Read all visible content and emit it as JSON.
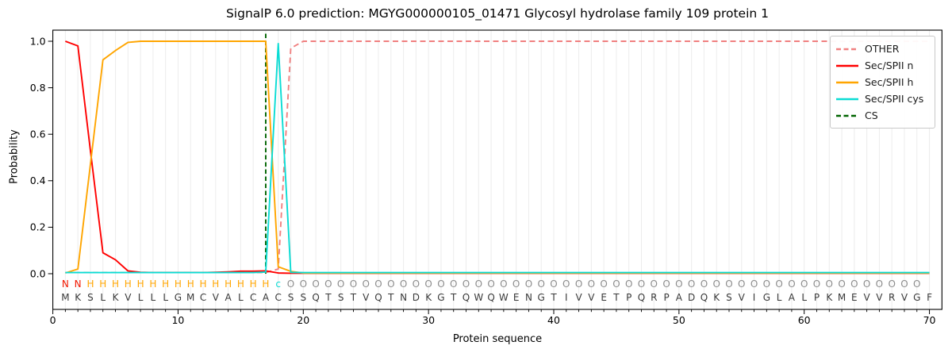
{
  "chart_data": {
    "type": "line",
    "title": "SignalP 6.0 prediction: MGYG000000105_01471 Glycosyl hydrolase family 109 protein 1",
    "xlabel": "Protein sequence",
    "ylabel": "Probability",
    "xlim": [
      0,
      71
    ],
    "ylim": [
      -0.15,
      1.05
    ],
    "xticks": [
      0,
      10,
      20,
      30,
      40,
      50,
      60,
      70
    ],
    "yticks": [
      "0.0",
      "0.2",
      "0.4",
      "0.6",
      "0.8",
      "1.0"
    ],
    "grid": "vertical line at every residue position, light gray",
    "legend_position": "upper right",
    "x": [
      1,
      2,
      3,
      4,
      5,
      6,
      7,
      8,
      9,
      10,
      11,
      12,
      13,
      14,
      15,
      16,
      17,
      18,
      19,
      20,
      21,
      22,
      23,
      24,
      25,
      26,
      27,
      28,
      29,
      30,
      31,
      32,
      33,
      34,
      35,
      36,
      37,
      38,
      39,
      40,
      41,
      42,
      43,
      44,
      45,
      46,
      47,
      48,
      49,
      50,
      51,
      52,
      53,
      54,
      55,
      56,
      57,
      58,
      59,
      60,
      61,
      62,
      63,
      64,
      65,
      66,
      67,
      68,
      69,
      70
    ],
    "series": [
      {
        "name": "OTHER",
        "color": "#f08080",
        "dash": true,
        "values": [
          0.005,
          0.005,
          0.005,
          0.005,
          0.005,
          0.005,
          0.005,
          0.005,
          0.005,
          0.005,
          0.005,
          0.005,
          0.005,
          0.005,
          0.005,
          0.005,
          0.005,
          0.02,
          0.97,
          1,
          1,
          1,
          1,
          1,
          1,
          1,
          1,
          1,
          1,
          1,
          1,
          1,
          1,
          1,
          1,
          1,
          1,
          1,
          1,
          1,
          1,
          1,
          1,
          1,
          1,
          1,
          1,
          1,
          1,
          1,
          1,
          1,
          1,
          1,
          1,
          1,
          1,
          1,
          1,
          1,
          1,
          1,
          1,
          1,
          1,
          1,
          1,
          1,
          1,
          1
        ]
      },
      {
        "name": "Sec/SPII n",
        "color": "#ff0000",
        "dash": false,
        "values": [
          1,
          0.98,
          0.53,
          0.09,
          0.06,
          0.012,
          0.006,
          0.005,
          0.005,
          0.005,
          0.005,
          0.005,
          0.006,
          0.008,
          0.011,
          0.011,
          0.012,
          0.003,
          0.002,
          0.002,
          0.002,
          0.002,
          0.002,
          0.002,
          0.002,
          0.002,
          0.002,
          0.002,
          0.002,
          0.002,
          0.002,
          0.002,
          0.002,
          0.002,
          0.002,
          0.002,
          0.002,
          0.002,
          0.002,
          0.002,
          0.002,
          0.002,
          0.002,
          0.002,
          0.002,
          0.002,
          0.002,
          0.002,
          0.002,
          0.002,
          0.002,
          0.002,
          0.002,
          0.002,
          0.002,
          0.002,
          0.002,
          0.002,
          0.002,
          0.002,
          0.002,
          0.002,
          0.002,
          0.002,
          0.002,
          0.002,
          0.002,
          0.002,
          0.002,
          0.002
        ]
      },
      {
        "name": "Sec/SPII h",
        "color": "#ffa500",
        "dash": false,
        "values": [
          0.003,
          0.02,
          0.47,
          0.92,
          0.96,
          0.995,
          1,
          1,
          1,
          1,
          1,
          1,
          1,
          1,
          1,
          1,
          1,
          0.03,
          0.01,
          0.003,
          0.003,
          0.003,
          0.003,
          0.003,
          0.003,
          0.003,
          0.003,
          0.003,
          0.003,
          0.003,
          0.003,
          0.003,
          0.003,
          0.003,
          0.003,
          0.003,
          0.003,
          0.003,
          0.003,
          0.003,
          0.003,
          0.003,
          0.003,
          0.003,
          0.003,
          0.003,
          0.003,
          0.003,
          0.003,
          0.003,
          0.003,
          0.003,
          0.003,
          0.003,
          0.003,
          0.003,
          0.003,
          0.003,
          0.003,
          0.003,
          0.003,
          0.003,
          0.003,
          0.003,
          0.003,
          0.003,
          0.003,
          0.003,
          0.003,
          0.003
        ]
      },
      {
        "name": "Sec/SPII cys",
        "color": "#0adcd4",
        "dash": false,
        "values": [
          0.005,
          0.005,
          0.005,
          0.005,
          0.005,
          0.005,
          0.005,
          0.005,
          0.005,
          0.005,
          0.005,
          0.005,
          0.005,
          0.005,
          0.005,
          0.005,
          0.007,
          0.99,
          0.006,
          0.005,
          0.005,
          0.005,
          0.005,
          0.005,
          0.005,
          0.005,
          0.005,
          0.005,
          0.005,
          0.005,
          0.005,
          0.005,
          0.005,
          0.005,
          0.005,
          0.005,
          0.005,
          0.005,
          0.005,
          0.005,
          0.005,
          0.005,
          0.005,
          0.005,
          0.005,
          0.005,
          0.005,
          0.005,
          0.005,
          0.005,
          0.005,
          0.005,
          0.005,
          0.005,
          0.005,
          0.005,
          0.005,
          0.005,
          0.005,
          0.005,
          0.005,
          0.005,
          0.005,
          0.005,
          0.005,
          0.005,
          0.005,
          0.005,
          0.005,
          0.005
        ]
      }
    ],
    "cs_marker": {
      "name": "CS",
      "x": 17,
      "color": "#006400",
      "dash": true
    },
    "legend": [
      {
        "label": "OTHER",
        "color": "#f08080",
        "dash": true
      },
      {
        "label": "Sec/SPII n",
        "color": "#ff0000",
        "dash": false
      },
      {
        "label": "Sec/SPII h",
        "color": "#ffa500",
        "dash": false
      },
      {
        "label": "Sec/SPII cys",
        "color": "#0adcd4",
        "dash": false
      },
      {
        "label": "CS",
        "color": "#006400",
        "dash": true
      }
    ],
    "sequence": "MKSLKVLLLGMCVALCACSSQTSTVQTNDKGTQWQWENGTIVVETPQRPADQKSVIGLALPKMEVVRVGF",
    "annotation": "NNHHHHHHHHHHHHHHHcOOOOOOOOOOOOOOOOOOOOOOOOOOOOOOOOOOOOOOOOOOOOOOOOOOO",
    "annotation_colors": {
      "N": "#f21800",
      "H": "#ffa500",
      "c": "#0adcd4",
      "O": "#8c8c8c"
    },
    "sequence_color": "#3a3a3a",
    "grid_color": "#ececec",
    "spine_color": "#000000"
  }
}
